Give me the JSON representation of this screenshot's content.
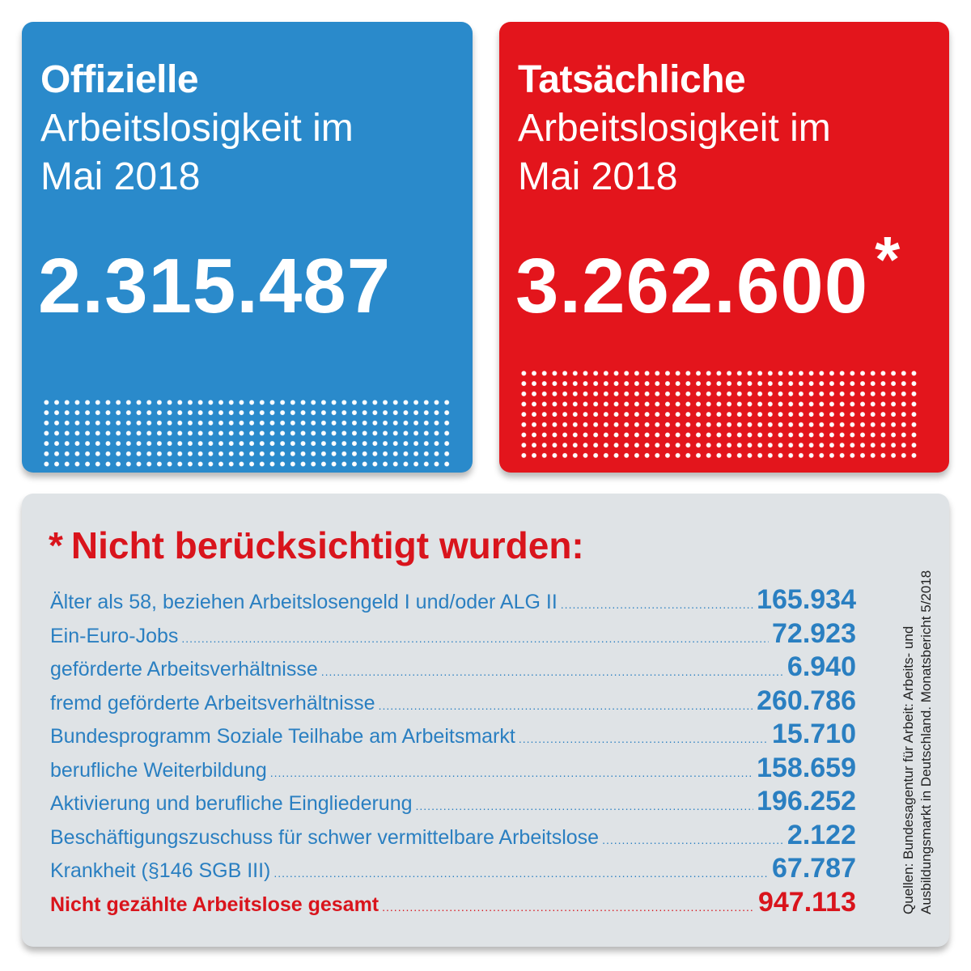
{
  "official": {
    "heading_bold": "Offizielle",
    "heading_line2": "Arbeitslosigkeit im",
    "heading_line3": "Mai 2018",
    "number": "2.315.487"
  },
  "actual": {
    "heading_bold": "Tatsächliche",
    "heading_line2": "Arbeitslosigkeit im",
    "heading_line3": "Mai 2018",
    "number": "3.262.600",
    "asterisk": "*"
  },
  "notes": {
    "asterisk": "*",
    "title": "Nicht berücksichtigt wurden:",
    "rows": [
      {
        "label": "Älter als 58, beziehen Arbeitslosengeld I und/oder ALG II",
        "value": "165.934"
      },
      {
        "label": "Ein-Euro-Jobs",
        "value": "72.923"
      },
      {
        "label": "geförderte Arbeitsverhältnisse",
        "value": "6.940"
      },
      {
        "label": "fremd geförderte Arbeitsverhältnisse",
        "value": "260.786"
      },
      {
        "label": "Bundesprogramm Soziale Teilhabe am Arbeitsmarkt",
        "value": "15.710"
      },
      {
        "label": "berufliche Weiterbildung",
        "value": "158.659"
      },
      {
        "label": "Aktivierung und berufliche Eingliederung",
        "value": "196.252"
      },
      {
        "label": "Beschäftigungszuschuss für schwer vermittelbare Arbeitslose",
        "value": "2.122"
      },
      {
        "label": "Krankheit (§146 SGB III)",
        "value": "67.787"
      }
    ],
    "total": {
      "label": "Nicht gezählte Arbeitslose gesamt",
      "value": "947.113"
    },
    "source_line1": "Quellen: Bundesagentur für Arbeit: Arbeits- und",
    "source_line2": "Ausbildungsmarkt in Deutschland. Monatsbericht 5/2018"
  },
  "colors": {
    "blue": "#2a8acb",
    "red": "#e3151c",
    "panel_gray": "#dfe3e6",
    "text_blue": "#2a7fc1"
  }
}
